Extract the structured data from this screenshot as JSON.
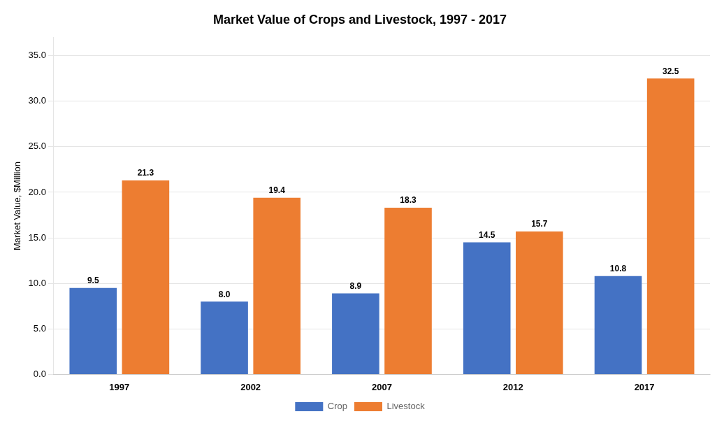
{
  "chart_data": {
    "type": "bar",
    "title": "Market Value of Crops and Livestock, 1997 - 2017",
    "y_label": "Market Value, $Million",
    "categories": [
      "1997",
      "2002",
      "2007",
      "2012",
      "2017"
    ],
    "series": [
      {
        "name": "Crop",
        "color": "#4472C4",
        "values": [
          9.5,
          8.0,
          8.9,
          14.5,
          10.8
        ],
        "value_labels": [
          "9.5",
          "8.0",
          "8.9",
          "14.5",
          "10.8"
        ]
      },
      {
        "name": "Livestock",
        "color": "#ED7D31",
        "values": [
          21.3,
          19.4,
          18.3,
          15.7,
          32.5
        ],
        "value_labels": [
          "21.3",
          "19.4",
          "18.3",
          "15.7",
          "32.5"
        ]
      }
    ],
    "ylim": [
      0,
      37
    ],
    "yticks": [
      {
        "value": 0.0,
        "label": "0.0"
      },
      {
        "value": 5.0,
        "label": "5.0"
      },
      {
        "value": 10.0,
        "label": "10.0"
      },
      {
        "value": 15.0,
        "label": "15.0"
      },
      {
        "value": 20.0,
        "label": "20.0"
      },
      {
        "value": 25.0,
        "label": "25.0"
      },
      {
        "value": 30.0,
        "label": "30.0"
      },
      {
        "value": 35.0,
        "label": "35.0"
      }
    ],
    "grid": true,
    "legend": "bottom",
    "data_labels": true
  }
}
